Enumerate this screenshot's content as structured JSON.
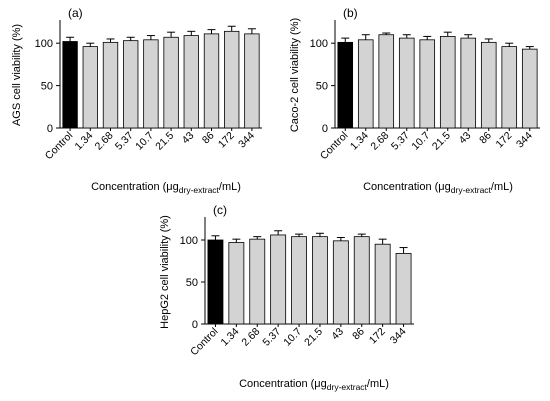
{
  "figure": {
    "background": "#ffffff",
    "bar_fill": "#d3d3d3",
    "control_fill": "#000000",
    "edge": "#000000"
  },
  "chart_data": [
    {
      "type": "bar",
      "panel_label": "(a)",
      "ylabel": "AGS cell viability (%)",
      "xlabel_main": "Concentration (",
      "xlabel_unit_mu": "μg",
      "xlabel_sub": "dry-extract",
      "xlabel_tail": "/mL)",
      "ylim": [
        0,
        125
      ],
      "yticks": [
        0,
        50,
        100
      ],
      "categories": [
        "Control",
        "1.34",
        "2.68",
        "5.37",
        "10.7",
        "21.5",
        "43",
        "86",
        "172",
        "344"
      ],
      "values": [
        102,
        96,
        101,
        103,
        104,
        107,
        109,
        111,
        114,
        111
      ],
      "errors": [
        5,
        4,
        4,
        4,
        5,
        6,
        5,
        5,
        6,
        6
      ]
    },
    {
      "type": "bar",
      "panel_label": "(b)",
      "ylabel": "Caco-2 cell viability (%)",
      "xlabel_main": "Concentration (",
      "xlabel_unit_mu": "μg",
      "xlabel_sub": "dry-extract",
      "xlabel_tail": "/mL)",
      "ylim": [
        0,
        125
      ],
      "yticks": [
        0,
        50,
        100
      ],
      "categories": [
        "Control",
        "1.34",
        "2.68",
        "5.37",
        "10.7",
        "21.5",
        "43",
        "86",
        "172",
        "344"
      ],
      "values": [
        101,
        104,
        110,
        106,
        104,
        108,
        106,
        101,
        96,
        93
      ],
      "errors": [
        5,
        6,
        2,
        4,
        4,
        5,
        4,
        4,
        4,
        3
      ]
    },
    {
      "type": "bar",
      "panel_label": "(c)",
      "ylabel": "HepG2 cell viability (%)",
      "xlabel_main": "Concentration (",
      "xlabel_unit_mu": "μg",
      "xlabel_sub": "dry-extract",
      "xlabel_tail": "/mL)",
      "ylim": [
        0,
        125
      ],
      "yticks": [
        0,
        50,
        100
      ],
      "categories": [
        "Control",
        "1.34",
        "2.68",
        "5.37",
        "10.7",
        "21.5",
        "43",
        "86",
        "172",
        "344"
      ],
      "values": [
        100,
        97,
        101,
        106,
        104,
        104,
        99,
        104,
        95,
        84
      ],
      "errors": [
        5,
        4,
        3,
        5,
        3,
        4,
        4,
        3,
        6,
        7
      ]
    }
  ]
}
